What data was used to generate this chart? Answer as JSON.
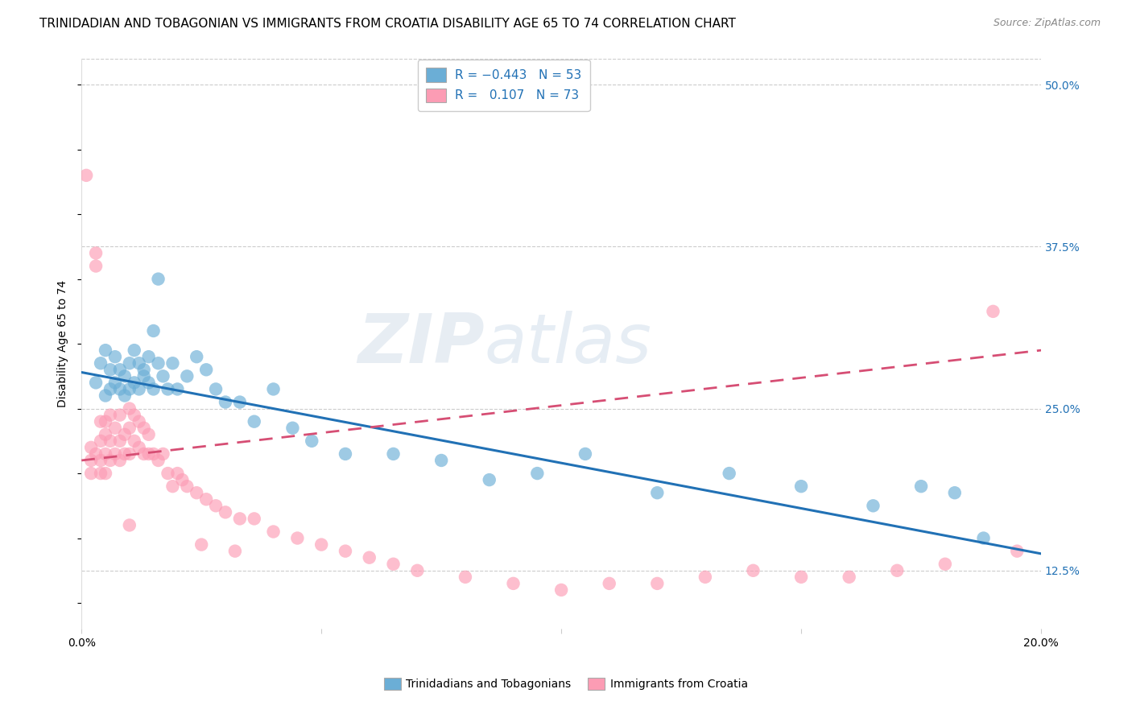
{
  "title": "TRINIDADIAN AND TOBAGONIAN VS IMMIGRANTS FROM CROATIA DISABILITY AGE 65 TO 74 CORRELATION CHART",
  "source": "Source: ZipAtlas.com",
  "ylabel": "Disability Age 65 to 74",
  "xlim": [
    0.0,
    0.2
  ],
  "ylim": [
    0.08,
    0.52
  ],
  "yticks_right": [
    0.125,
    0.25,
    0.375,
    0.5
  ],
  "ytick_labels_right": [
    "12.5%",
    "25.0%",
    "37.5%",
    "50.0%"
  ],
  "blue_color": "#6baed6",
  "pink_color": "#fc9cb4",
  "blue_line_color": "#2171b5",
  "pink_line_color": "#d64e74",
  "title_fontsize": 11,
  "axis_label_fontsize": 10,
  "tick_fontsize": 10,
  "legend_fontsize": 11,
  "watermark_zip": "ZIP",
  "watermark_atlas": "atlas",
  "blue_scatter_x": [
    0.003,
    0.004,
    0.005,
    0.005,
    0.006,
    0.006,
    0.007,
    0.007,
    0.008,
    0.008,
    0.009,
    0.009,
    0.01,
    0.01,
    0.011,
    0.011,
    0.012,
    0.012,
    0.013,
    0.013,
    0.014,
    0.014,
    0.015,
    0.015,
    0.016,
    0.016,
    0.017,
    0.018,
    0.019,
    0.02,
    0.022,
    0.024,
    0.026,
    0.028,
    0.03,
    0.033,
    0.036,
    0.04,
    0.044,
    0.048,
    0.055,
    0.065,
    0.075,
    0.085,
    0.095,
    0.105,
    0.12,
    0.135,
    0.15,
    0.165,
    0.175,
    0.182,
    0.188
  ],
  "blue_scatter_y": [
    0.27,
    0.285,
    0.26,
    0.295,
    0.265,
    0.28,
    0.29,
    0.27,
    0.265,
    0.28,
    0.275,
    0.26,
    0.285,
    0.265,
    0.295,
    0.27,
    0.285,
    0.265,
    0.275,
    0.28,
    0.29,
    0.27,
    0.31,
    0.265,
    0.285,
    0.35,
    0.275,
    0.265,
    0.285,
    0.265,
    0.275,
    0.29,
    0.28,
    0.265,
    0.255,
    0.255,
    0.24,
    0.265,
    0.235,
    0.225,
    0.215,
    0.215,
    0.21,
    0.195,
    0.2,
    0.215,
    0.185,
    0.2,
    0.19,
    0.175,
    0.19,
    0.185,
    0.15
  ],
  "pink_scatter_x": [
    0.001,
    0.002,
    0.002,
    0.002,
    0.003,
    0.003,
    0.003,
    0.004,
    0.004,
    0.004,
    0.004,
    0.005,
    0.005,
    0.005,
    0.005,
    0.006,
    0.006,
    0.006,
    0.007,
    0.007,
    0.008,
    0.008,
    0.008,
    0.009,
    0.009,
    0.01,
    0.01,
    0.01,
    0.011,
    0.011,
    0.012,
    0.012,
    0.013,
    0.013,
    0.014,
    0.014,
    0.015,
    0.016,
    0.017,
    0.018,
    0.019,
    0.02,
    0.021,
    0.022,
    0.024,
    0.026,
    0.028,
    0.03,
    0.033,
    0.036,
    0.04,
    0.045,
    0.05,
    0.055,
    0.06,
    0.065,
    0.07,
    0.08,
    0.09,
    0.1,
    0.11,
    0.12,
    0.13,
    0.14,
    0.15,
    0.16,
    0.17,
    0.18,
    0.19,
    0.195,
    0.01,
    0.025,
    0.032
  ],
  "pink_scatter_y": [
    0.43,
    0.22,
    0.21,
    0.2,
    0.37,
    0.36,
    0.215,
    0.24,
    0.225,
    0.21,
    0.2,
    0.24,
    0.23,
    0.215,
    0.2,
    0.245,
    0.225,
    0.21,
    0.235,
    0.215,
    0.245,
    0.225,
    0.21,
    0.23,
    0.215,
    0.25,
    0.235,
    0.215,
    0.245,
    0.225,
    0.24,
    0.22,
    0.235,
    0.215,
    0.23,
    0.215,
    0.215,
    0.21,
    0.215,
    0.2,
    0.19,
    0.2,
    0.195,
    0.19,
    0.185,
    0.18,
    0.175,
    0.17,
    0.165,
    0.165,
    0.155,
    0.15,
    0.145,
    0.14,
    0.135,
    0.13,
    0.125,
    0.12,
    0.115,
    0.11,
    0.115,
    0.115,
    0.12,
    0.125,
    0.12,
    0.12,
    0.125,
    0.13,
    0.325,
    0.14,
    0.16,
    0.145,
    0.14
  ],
  "blue_line_x0": 0.0,
  "blue_line_x1": 0.2,
  "blue_line_y0": 0.278,
  "blue_line_y1": 0.138,
  "pink_line_x0": 0.0,
  "pink_line_x1": 0.2,
  "pink_line_y0": 0.21,
  "pink_line_y1": 0.295
}
